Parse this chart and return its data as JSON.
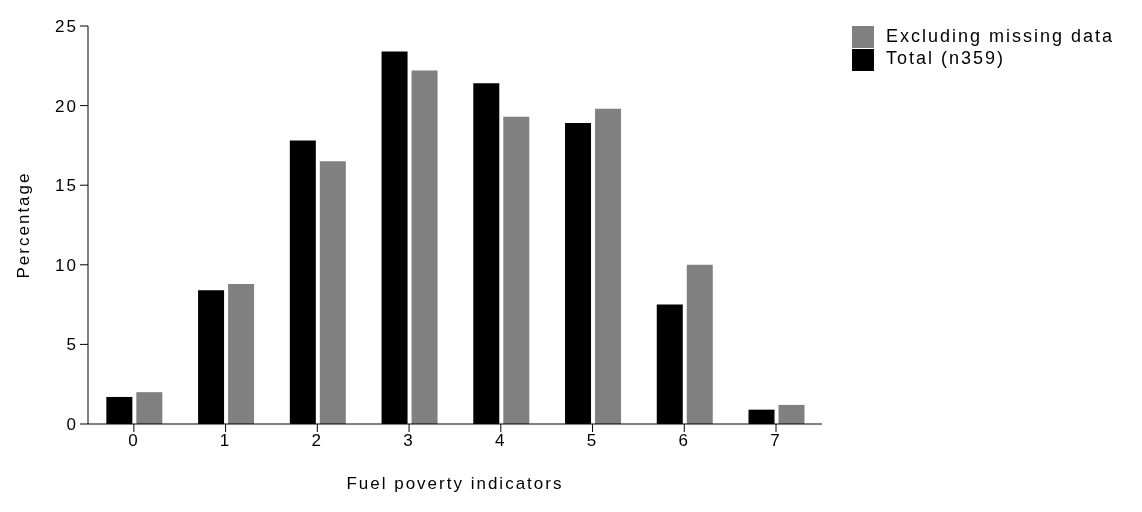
{
  "chart_data": {
    "type": "bar",
    "xlabel": "Fuel poverty indicators",
    "ylabel": "Percentage",
    "categories": [
      "0",
      "1",
      "2",
      "3",
      "4",
      "5",
      "6",
      "7"
    ],
    "series": [
      {
        "name": "Total (n359)",
        "color": "#000000",
        "values": [
          1.7,
          8.4,
          17.8,
          23.4,
          21.4,
          18.9,
          7.5,
          0.9
        ]
      },
      {
        "name": "Excluding missing data",
        "color": "#808080",
        "values": [
          2.0,
          8.8,
          16.5,
          22.2,
          19.3,
          19.8,
          10.0,
          1.2
        ]
      }
    ],
    "ylim": [
      0,
      25
    ],
    "yticks": [
      0,
      5,
      10,
      15,
      20,
      25
    ],
    "grid": false,
    "legend": "top right"
  }
}
